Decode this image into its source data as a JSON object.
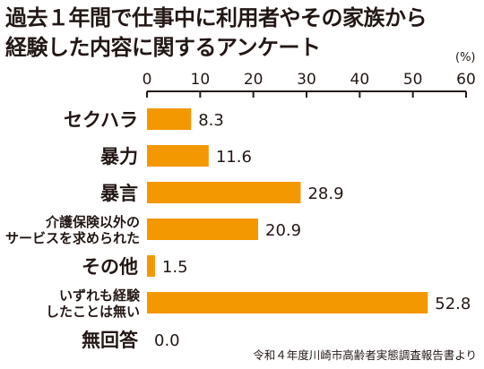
{
  "chart_data": {
    "type": "bar",
    "orientation": "horizontal",
    "title_lines": [
      "過去１年間で仕事中に利用者やその家族から",
      "経験した内容に関するアンケート"
    ],
    "unit": "(%)",
    "source": "令和４年度川崎市高齢者実態調査報告書より",
    "categories": [
      [
        "セクハラ"
      ],
      [
        "暴力"
      ],
      [
        "暴言"
      ],
      [
        "介護保険以外の",
        "サービスを求められた"
      ],
      [
        "その他"
      ],
      [
        "いずれも経験",
        "したことは無い"
      ],
      [
        "無回答"
      ]
    ],
    "values": [
      8.3,
      11.6,
      28.9,
      20.9,
      1.5,
      52.8,
      0.0
    ],
    "value_labels": [
      "8.3",
      "11.6",
      "28.9",
      "20.9",
      "1.5",
      "52.8",
      "0.0"
    ],
    "xlim": [
      0,
      60
    ],
    "xticks": [
      "0",
      "10",
      "20",
      "30",
      "40",
      "50",
      "60"
    ],
    "bar_color": "#f39800",
    "grid": false
  }
}
